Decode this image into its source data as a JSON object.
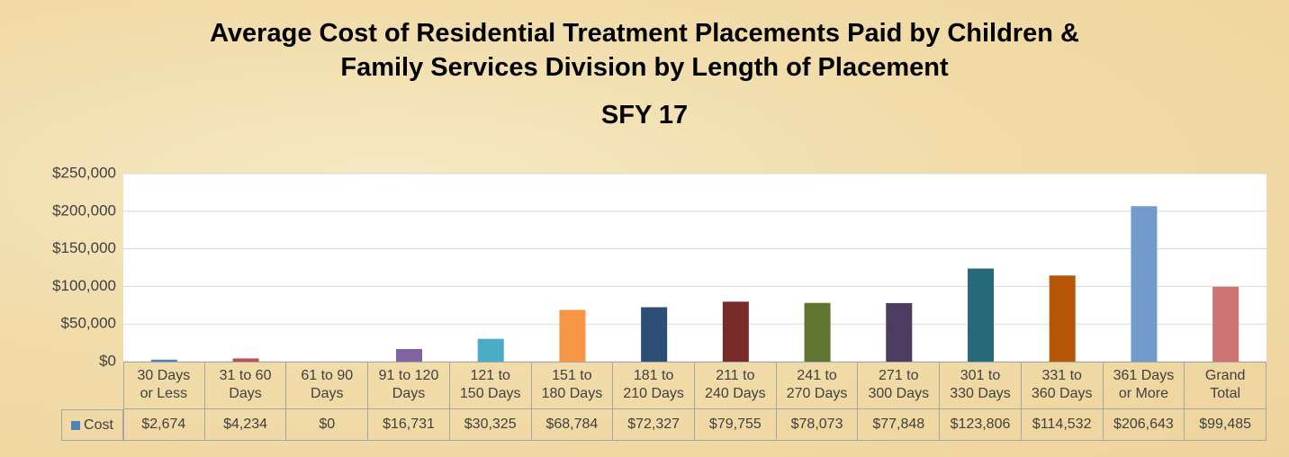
{
  "chart_data": {
    "type": "bar",
    "title": "Average Cost of Residential Treatment Placements Paid by Children &\nFamily Services Division by Length of Placement",
    "subtitle": "SFY 17",
    "categories": [
      "30 Days\nor Less",
      "31 to 60\nDays",
      "61 to 90\nDays",
      "91 to 120\nDays",
      "121 to\n150 Days",
      "151 to\n180 Days",
      "181 to\n210 Days",
      "211 to\n240 Days",
      "241 to\n270 Days",
      "271 to\n300 Days",
      "301 to\n330 Days",
      "331 to\n360 Days",
      "361 Days\nor More",
      "Grand\nTotal"
    ],
    "series": [
      {
        "name": "Cost",
        "color": "#4f81bd",
        "colors": [
          "#4f81bd",
          "#c0504d",
          "#9bbb59",
          "#8064a2",
          "#4bacc6",
          "#f79646",
          "#2c4d75",
          "#772c2a",
          "#5f7530",
          "#4d3b62",
          "#276a7c",
          "#b65708",
          "#729aca",
          "#cd7371"
        ],
        "values": [
          2674,
          4234,
          0,
          16731,
          30325,
          68784,
          72327,
          79755,
          78073,
          77848,
          123806,
          114532,
          206643,
          99485
        ],
        "value_labels": [
          "$2,674",
          "$4,234",
          "$0",
          "$16,731",
          "$30,325",
          "$68,784",
          "$72,327",
          "$79,755",
          "$78,073",
          "$77,848",
          "$123,806",
          "$114,532",
          "$206,643",
          "$99,485"
        ]
      }
    ],
    "ylim": [
      0,
      250000
    ],
    "yticks": [
      {
        "value": 0,
        "label": "$0"
      },
      {
        "value": 50000,
        "label": "$50,000"
      },
      {
        "value": 100000,
        "label": "$100,000"
      },
      {
        "value": 150000,
        "label": "$150,000"
      },
      {
        "value": 200000,
        "label": "$200,000"
      },
      {
        "value": 250000,
        "label": "$250,000"
      }
    ],
    "grid": true
  }
}
